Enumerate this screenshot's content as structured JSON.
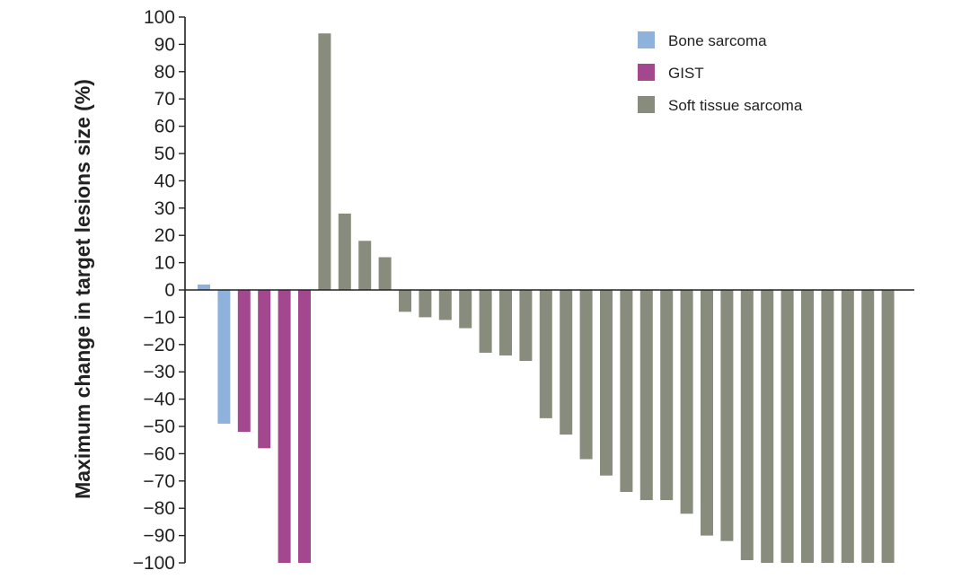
{
  "chart_data": {
    "type": "bar",
    "title": "",
    "xlabel": "",
    "ylabel": "Maximum change in target lesions size (%)",
    "ylim": [
      -100,
      100
    ],
    "yticks": [
      100,
      90,
      80,
      70,
      60,
      50,
      40,
      30,
      20,
      10,
      0,
      -10,
      -20,
      -30,
      -40,
      -50,
      -60,
      -70,
      -80,
      -90,
      -100
    ],
    "ytick_labels": [
      "100",
      "90",
      "80",
      "70",
      "60",
      "50",
      "40",
      "30",
      "20",
      "10",
      "0",
      "−10",
      "−20",
      "−30",
      "−40",
      "−50",
      "−60",
      "−70",
      "−80",
      "−90",
      "−100"
    ],
    "grid": false,
    "legend_position": "top-right",
    "series": [
      {
        "name": "Bone sarcoma",
        "color": "#8fb2dc"
      },
      {
        "name": "GIST",
        "color": "#a3488e"
      },
      {
        "name": "Soft tissue sarcoma",
        "color": "#888c7c"
      }
    ],
    "bars": [
      {
        "series": 0,
        "value": 2
      },
      {
        "series": 0,
        "value": -49
      },
      {
        "series": 1,
        "value": -52
      },
      {
        "series": 1,
        "value": -58
      },
      {
        "series": 1,
        "value": -100
      },
      {
        "series": 1,
        "value": -100
      },
      {
        "series": 2,
        "value": 94
      },
      {
        "series": 2,
        "value": 28
      },
      {
        "series": 2,
        "value": 18
      },
      {
        "series": 2,
        "value": 12
      },
      {
        "series": 2,
        "value": -8
      },
      {
        "series": 2,
        "value": -10
      },
      {
        "series": 2,
        "value": -11
      },
      {
        "series": 2,
        "value": -14
      },
      {
        "series": 2,
        "value": -23
      },
      {
        "series": 2,
        "value": -24
      },
      {
        "series": 2,
        "value": -26
      },
      {
        "series": 2,
        "value": -47
      },
      {
        "series": 2,
        "value": -53
      },
      {
        "series": 2,
        "value": -62
      },
      {
        "series": 2,
        "value": -68
      },
      {
        "series": 2,
        "value": -74
      },
      {
        "series": 2,
        "value": -77
      },
      {
        "series": 2,
        "value": -77
      },
      {
        "series": 2,
        "value": -82
      },
      {
        "series": 2,
        "value": -90
      },
      {
        "series": 2,
        "value": -92
      },
      {
        "series": 2,
        "value": -99
      },
      {
        "series": 2,
        "value": -100
      },
      {
        "series": 2,
        "value": -100
      },
      {
        "series": 2,
        "value": -100
      },
      {
        "series": 2,
        "value": -100
      },
      {
        "series": 2,
        "value": -100
      },
      {
        "series": 2,
        "value": -100
      },
      {
        "series": 2,
        "value": -100
      }
    ]
  }
}
